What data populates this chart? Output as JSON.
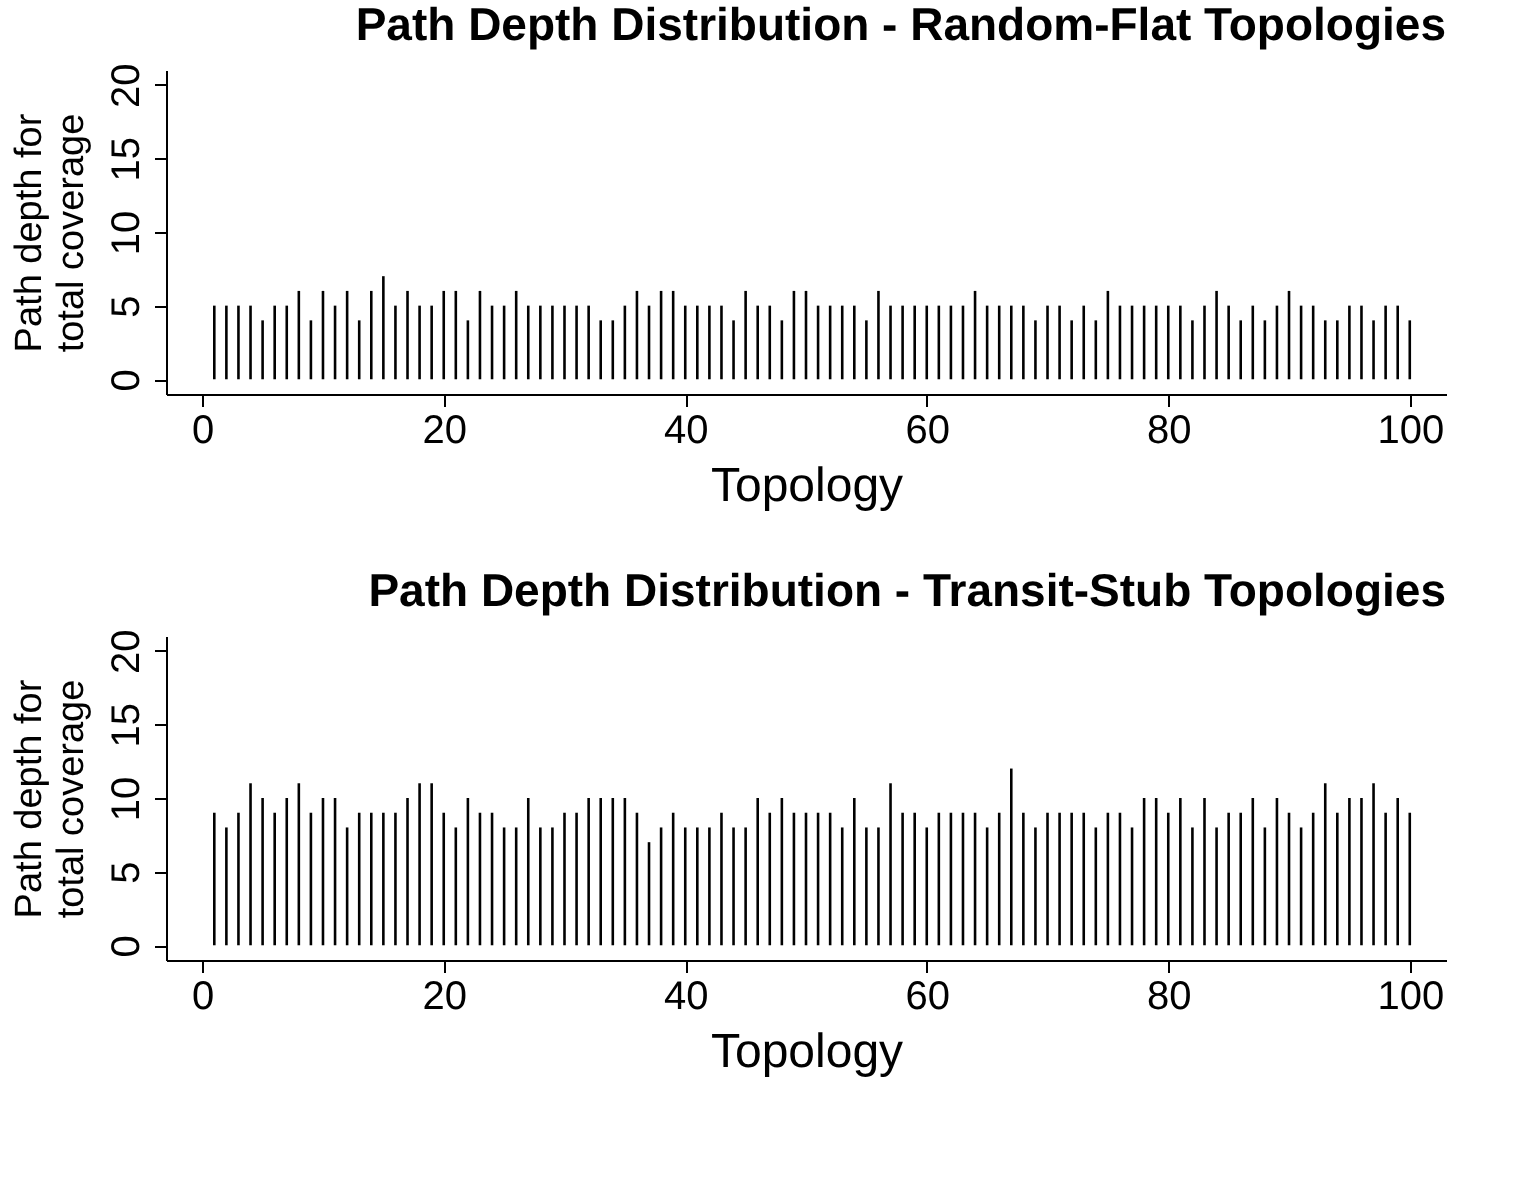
{
  "chart_data": [
    {
      "type": "bar",
      "title": "Path Depth Distribution - Random-Flat Topologies",
      "xlabel": "Topology",
      "ylabel": "Path depth for\ntotal coverage",
      "x": [
        1,
        2,
        3,
        4,
        5,
        6,
        7,
        8,
        9,
        10,
        11,
        12,
        13,
        14,
        15,
        16,
        17,
        18,
        19,
        20,
        21,
        22,
        23,
        24,
        25,
        26,
        27,
        28,
        29,
        30,
        31,
        32,
        33,
        34,
        35,
        36,
        37,
        38,
        39,
        40,
        41,
        42,
        43,
        44,
        45,
        46,
        47,
        48,
        49,
        50,
        51,
        52,
        53,
        54,
        55,
        56,
        57,
        58,
        59,
        60,
        61,
        62,
        63,
        64,
        65,
        66,
        67,
        68,
        69,
        70,
        71,
        72,
        73,
        74,
        75,
        76,
        77,
        78,
        79,
        80,
        81,
        82,
        83,
        84,
        85,
        86,
        87,
        88,
        89,
        90,
        91,
        92,
        93,
        94,
        95,
        96,
        97,
        98,
        99,
        100
      ],
      "series": [
        {
          "color": "#000000",
          "values": [
            5,
            5,
            5,
            5,
            4,
            5,
            5,
            6,
            4,
            6,
            5,
            6,
            4,
            6,
            7,
            5,
            6,
            5,
            5,
            6,
            6,
            4,
            6,
            5,
            5,
            6,
            5,
            5,
            5,
            5,
            5,
            5,
            4,
            4,
            5,
            6,
            5,
            6,
            6,
            5,
            5,
            5,
            5,
            4,
            6,
            5,
            5,
            4,
            6,
            6,
            5,
            5,
            5,
            5,
            4,
            6,
            5,
            5,
            5,
            5,
            5,
            5,
            5,
            6,
            5,
            5,
            5,
            5,
            4,
            5,
            5,
            4,
            5,
            4,
            6,
            5,
            5,
            5,
            5,
            5,
            5,
            4,
            5,
            6,
            5,
            4,
            5,
            4,
            5,
            6,
            5,
            5,
            4,
            4,
            5,
            5,
            4,
            5,
            5,
            4
          ]
        }
      ],
      "xlim": [
        -3,
        103
      ],
      "ylim": [
        -1,
        21
      ],
      "xticks": [
        0,
        20,
        40,
        60,
        80,
        100
      ],
      "yticks": [
        0,
        5,
        10,
        15,
        20
      ],
      "grid": false
    },
    {
      "type": "bar",
      "title": "Path Depth Distribution - Transit-Stub Topologies",
      "xlabel": "Topology",
      "ylabel": "Path depth for\ntotal coverage",
      "x": [
        1,
        2,
        3,
        4,
        5,
        6,
        7,
        8,
        9,
        10,
        11,
        12,
        13,
        14,
        15,
        16,
        17,
        18,
        19,
        20,
        21,
        22,
        23,
        24,
        25,
        26,
        27,
        28,
        29,
        30,
        31,
        32,
        33,
        34,
        35,
        36,
        37,
        38,
        39,
        40,
        41,
        42,
        43,
        44,
        45,
        46,
        47,
        48,
        49,
        50,
        51,
        52,
        53,
        54,
        55,
        56,
        57,
        58,
        59,
        60,
        61,
        62,
        63,
        64,
        65,
        66,
        67,
        68,
        69,
        70,
        71,
        72,
        73,
        74,
        75,
        76,
        77,
        78,
        79,
        80,
        81,
        82,
        83,
        84,
        85,
        86,
        87,
        88,
        89,
        90,
        91,
        92,
        93,
        94,
        95,
        96,
        97,
        98,
        99,
        100
      ],
      "series": [
        {
          "color": "#000000",
          "values": [
            9,
            8,
            9,
            11,
            10,
            9,
            10,
            11,
            9,
            10,
            10,
            8,
            9,
            9,
            9,
            9,
            10,
            11,
            11,
            9,
            8,
            10,
            9,
            9,
            8,
            8,
            10,
            8,
            8,
            9,
            9,
            10,
            10,
            10,
            10,
            9,
            7,
            8,
            9,
            8,
            8,
            8,
            9,
            8,
            8,
            10,
            9,
            10,
            9,
            9,
            9,
            9,
            8,
            10,
            8,
            8,
            11,
            9,
            9,
            8,
            9,
            9,
            9,
            9,
            8,
            9,
            12,
            9,
            8,
            9,
            9,
            9,
            9,
            8,
            9,
            9,
            8,
            10,
            10,
            9,
            10,
            8,
            10,
            8,
            9,
            9,
            10,
            8,
            10,
            9,
            8,
            9,
            11,
            9,
            10,
            10,
            11,
            9,
            10,
            9
          ]
        }
      ],
      "xlim": [
        -3,
        103
      ],
      "ylim": [
        -1,
        21
      ],
      "xticks": [
        0,
        20,
        40,
        60,
        80,
        100
      ],
      "yticks": [
        0,
        5,
        10,
        15,
        20
      ],
      "grid": false
    }
  ]
}
